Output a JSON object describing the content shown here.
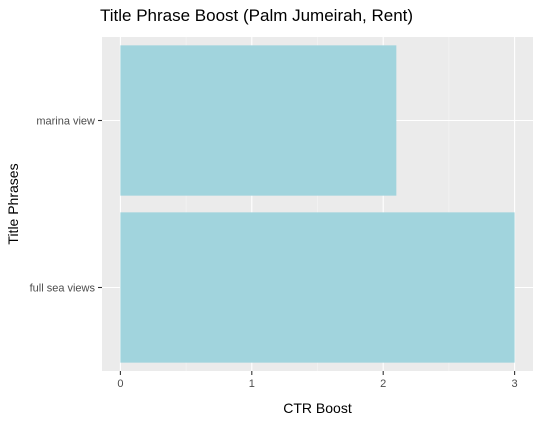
{
  "chart_data": {
    "type": "bar",
    "orientation": "horizontal",
    "title": "Title Phrase Boost (Palm Jumeirah, Rent)",
    "xlabel": "CTR Boost",
    "ylabel": "Title Phrases",
    "categories": [
      "full sea views",
      "marina view"
    ],
    "values": [
      3.0,
      2.1
    ],
    "xlim": [
      -0.14,
      3.14
    ],
    "x_ticks": [
      0,
      1,
      2,
      3
    ],
    "grid": true,
    "legend": "none",
    "colors": {
      "bar_fill": "#a1d4dd",
      "panel_background": "#ebebeb",
      "grid_major": "#ffffff",
      "grid_minor": "#f5f5f5"
    }
  }
}
